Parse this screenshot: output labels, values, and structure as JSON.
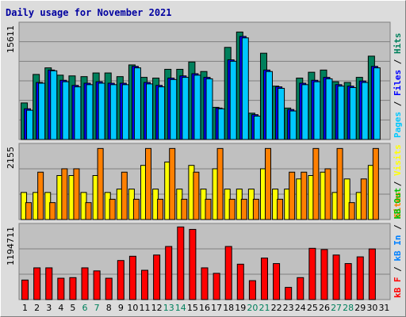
{
  "chart_data": {
    "type": "bar",
    "title": "Daily usage for November 2021",
    "categories": [
      "1",
      "2",
      "3",
      "4",
      "5",
      "6",
      "7",
      "8",
      "9",
      "10",
      "11",
      "12",
      "13",
      "14",
      "15",
      "16",
      "17",
      "18",
      "19",
      "20",
      "21",
      "22",
      "23",
      "24",
      "25",
      "26",
      "27",
      "28",
      "29",
      "30",
      "31"
    ],
    "weekend_days": [
      "6",
      "7",
      "13",
      "14",
      "20",
      "21",
      "27",
      "28"
    ],
    "panels": [
      {
        "name": "hits-files-pages",
        "max_label": "15611",
        "ylim": [
          0,
          15611
        ],
        "series": [
          {
            "name": "Hits",
            "color": "#00805c",
            "values": [
              5000,
              8900,
              9800,
              8800,
              8700,
              8600,
              9100,
              9100,
              8600,
              10200,
              8500,
              8400,
              9600,
              9600,
              10600,
              9300,
              4400,
              12600,
              14700,
              3600,
              11800,
              7300,
              4300,
              8400,
              9200,
              9500,
              7900,
              7800,
              8500,
              11400,
              null
            ]
          },
          {
            "name": "Files",
            "color": "#0000ff",
            "values": [
              4200,
              7800,
              9500,
              8100,
              7400,
              7700,
              7900,
              7700,
              7700,
              10000,
              7800,
              7400,
              8400,
              8700,
              9000,
              8500,
              4300,
              10900,
              14100,
              3400,
              9500,
              7200,
              4100,
              7700,
              8100,
              8500,
              7500,
              7300,
              8000,
              10000,
              null
            ]
          },
          {
            "name": "Pages",
            "color": "#00c8ff",
            "values": [
              4000,
              7700,
              9400,
              7900,
              7200,
              7500,
              7700,
              7500,
              7500,
              9800,
              7600,
              7200,
              8200,
              8500,
              8800,
              8300,
              4200,
              10700,
              13900,
              3200,
              9300,
              7000,
              3900,
              7500,
              7900,
              8300,
              7300,
              7100,
              7800,
              9800,
              null
            ]
          }
        ],
        "axis_labels": [
          {
            "text": "Pages",
            "color": "#00c8ff"
          },
          {
            "text": " / ",
            "color": "#000000"
          },
          {
            "text": "Files",
            "color": "#0000ff"
          },
          {
            "text": " / ",
            "color": "#000000"
          },
          {
            "text": "Hits",
            "color": "#00805c"
          }
        ]
      },
      {
        "name": "visits-sites",
        "max_label": "2155",
        "ylim": [
          0,
          2155
        ],
        "series": [
          {
            "name": "Visits",
            "color": "#ffff00",
            "values": [
              800,
              800,
              800,
              1300,
              1300,
              800,
              1300,
              800,
              900,
              900,
              1600,
              900,
              1700,
              900,
              1600,
              900,
              1500,
              900,
              900,
              900,
              1500,
              900,
              900,
              1200,
              1300,
              1400,
              800,
              1200,
              800,
              1600,
              null
            ]
          },
          {
            "name": "Sites",
            "color": "#ff8000",
            "values": [
              500,
              1400,
              500,
              1500,
              1500,
              500,
              2100,
              600,
              1400,
              600,
              2100,
              600,
              2100,
              600,
              1400,
              600,
              2100,
              600,
              600,
              600,
              2100,
              600,
              1400,
              1400,
              2100,
              1500,
              2100,
              500,
              1200,
              2100,
              null
            ]
          }
        ],
        "axis_labels": [
          {
            "text": "Sites",
            "color": "#ff8000"
          },
          {
            "text": " / ",
            "color": "#000000"
          },
          {
            "text": "Visits",
            "color": "#ffff00"
          }
        ]
      },
      {
        "name": "kbytes-in-out",
        "max_label": "1194711",
        "ylim": [
          0,
          1194711
        ],
        "series": [
          {
            "name": "kB F",
            "color": "#ff0000",
            "values": [
              320000,
              520000,
              520000,
              350000,
              360000,
              520000,
              470000,
              350000,
              640000,
              710000,
              480000,
              730000,
              870000,
              1190000,
              1150000,
              520000,
              430000,
              870000,
              580000,
              310000,
              680000,
              590000,
              200000,
              360000,
              840000,
              820000,
              730000,
              590000,
              700000,
              830000,
              null
            ]
          }
        ],
        "axis_labels": [
          {
            "text": "kB F",
            "color": "#ff0000"
          },
          {
            "text": " / ",
            "color": "#000000"
          },
          {
            "text": "kB In",
            "color": "#0080ff"
          },
          {
            "text": " / ",
            "color": "#000000"
          },
          {
            "text": "kB Out",
            "color": "#00c000"
          }
        ]
      }
    ],
    "colors": {
      "panel_bg": "#c0c0c0",
      "weekday_tick": "#000000",
      "weekend_tick": "#00805c",
      "grid": "#808080"
    }
  }
}
